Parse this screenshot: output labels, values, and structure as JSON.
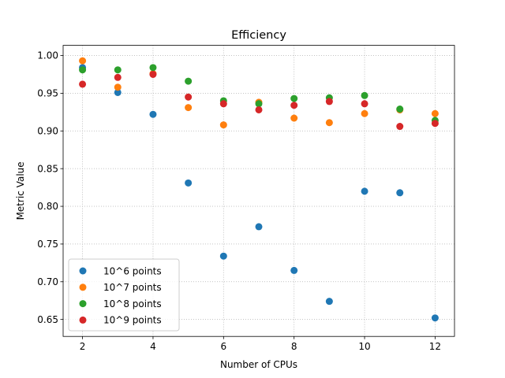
{
  "chart_data": {
    "type": "scatter",
    "title": "Efficiency",
    "xlabel": "Number of CPUs",
    "ylabel": "Metric Value",
    "xlim": [
      1.45,
      12.55
    ],
    "ylim": [
      0.6275,
      1.0135
    ],
    "xticks": [
      2,
      4,
      6,
      8,
      10,
      12
    ],
    "yticks": [
      0.65,
      0.7,
      0.75,
      0.8,
      0.85,
      0.9,
      0.95,
      1.0
    ],
    "ytick_labels": [
      "0.65",
      "0.70",
      "0.75",
      "0.80",
      "0.85",
      "0.90",
      "0.95",
      "1.00"
    ],
    "grid": true,
    "legend_position": "lower-left",
    "x": [
      2,
      3,
      4,
      5,
      6,
      7,
      8,
      9,
      10,
      11,
      12
    ],
    "series": [
      {
        "name": "10^6 points",
        "color": "#1f77b4",
        "values": [
          0.984,
          0.951,
          0.922,
          0.831,
          0.734,
          0.773,
          0.715,
          0.674,
          0.82,
          0.818,
          0.652
        ]
      },
      {
        "name": "10^7 points",
        "color": "#ff7f0e",
        "values": [
          0.993,
          0.958,
          0.976,
          0.931,
          0.908,
          0.938,
          0.917,
          0.911,
          0.923,
          0.928,
          0.923
        ]
      },
      {
        "name": "10^8 points",
        "color": "#2ca02c",
        "values": [
          0.981,
          0.981,
          0.984,
          0.966,
          0.94,
          0.936,
          0.943,
          0.944,
          0.947,
          0.929,
          0.914
        ]
      },
      {
        "name": "10^9 points",
        "color": "#d62728",
        "values": [
          0.962,
          0.971,
          0.975,
          0.945,
          0.936,
          0.928,
          0.934,
          0.939,
          0.936,
          0.906,
          0.91
        ]
      }
    ]
  }
}
